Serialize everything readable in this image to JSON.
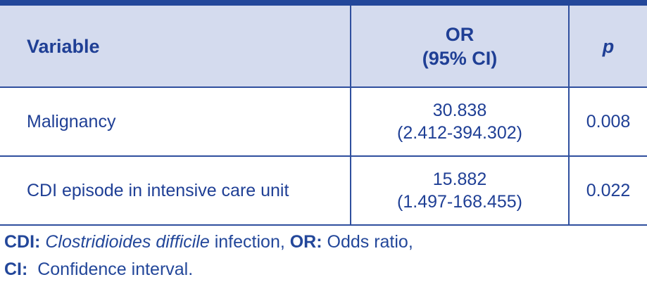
{
  "table": {
    "headers": {
      "variable": "Variable",
      "or_line1": "OR",
      "or_line2": "(95% CI)",
      "p": "p"
    },
    "rows": [
      {
        "variable": "Malignancy",
        "or": "30.838",
        "ci": "(2.412-394.302)",
        "p": "0.008"
      },
      {
        "variable": "CDI episode in intensive care unit",
        "or": "15.882",
        "ci": "(1.497-168.455)",
        "p": "0.022"
      }
    ]
  },
  "footnote": {
    "line1": {
      "cdi_abbr": "CDI:",
      "cdi_species": "Clostridioides difficile",
      "cdi_rest": " infection, ",
      "or_abbr": "OR:",
      "or_def": " Odds ratio,"
    },
    "line2": {
      "ci_abbr": "CI:",
      "ci_def": "  Confidence interval."
    }
  },
  "colors": {
    "header_bg": "#d4dbee",
    "text": "#1f3f95",
    "rule": "#23479a"
  }
}
